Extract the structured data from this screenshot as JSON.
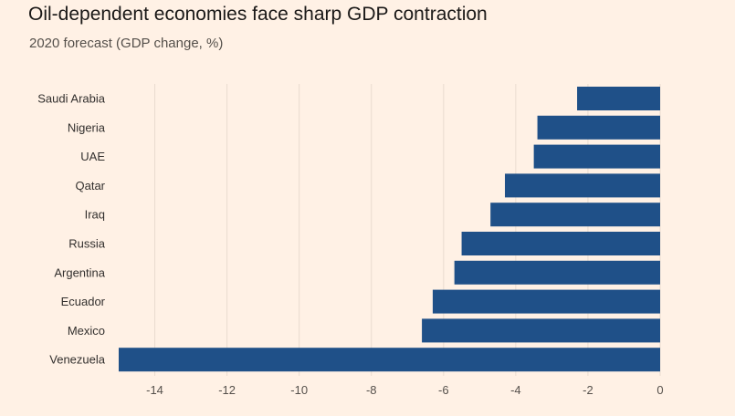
{
  "header": {
    "title": "Oil-dependent economies face sharp GDP contraction",
    "subtitle": "2020 forecast (GDP change, %)"
  },
  "colors": {
    "background": "#fff1e5",
    "bar": "#1f5088",
    "grid": "#e9dccf"
  },
  "chart_data": {
    "type": "bar",
    "orientation": "horizontal",
    "title": "Oil-dependent economies face sharp GDP contraction",
    "subtitle": "2020 forecast (GDP change, %)",
    "xlabel": "",
    "ylabel": "",
    "categories": [
      "Saudi Arabia",
      "Nigeria",
      "UAE",
      "Qatar",
      "Iraq",
      "Russia",
      "Argentina",
      "Ecuador",
      "Mexico",
      "Venezuela"
    ],
    "values": [
      -2.3,
      -3.4,
      -3.5,
      -4.3,
      -4.7,
      -5.5,
      -5.7,
      -6.3,
      -6.6,
      -15
    ],
    "xlim": [
      -15,
      0
    ],
    "xticks": [
      -14,
      -12,
      -10,
      -8,
      -6,
      -4,
      -2,
      0
    ],
    "xtick_labels": [
      "-14",
      "-12",
      "-10",
      "-8",
      "-6",
      "-4",
      "-2",
      "0"
    ],
    "grid": "vertical",
    "legend": "none"
  }
}
